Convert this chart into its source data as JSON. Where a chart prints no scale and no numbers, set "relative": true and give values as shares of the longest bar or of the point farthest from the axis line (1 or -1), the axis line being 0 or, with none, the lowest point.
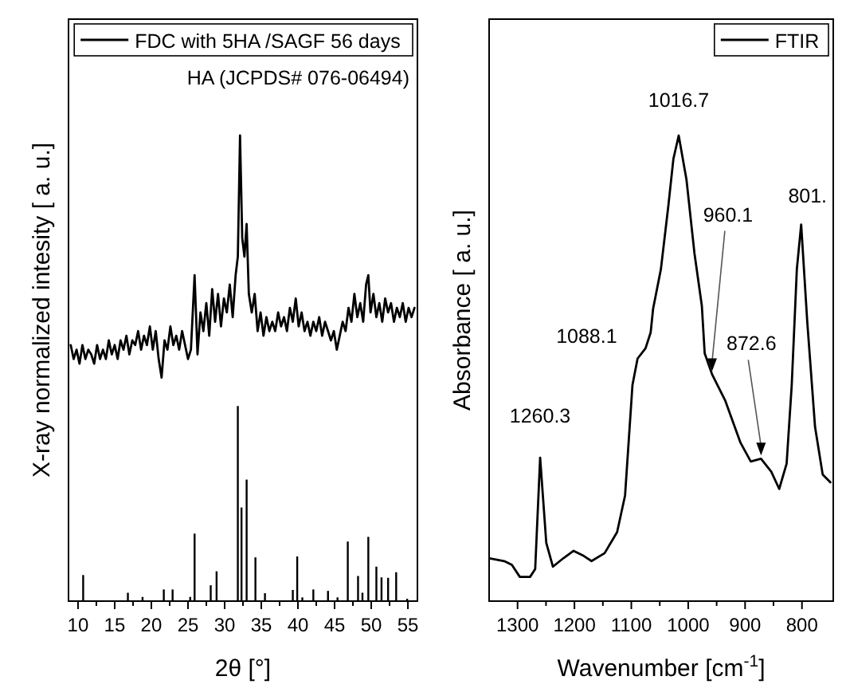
{
  "chart_data": [
    {
      "type": "line",
      "xlabel": "2θ [°]",
      "ylabel": "X-ray normalized intesity [ a. u.]",
      "relative": true,
      "legend": "top right",
      "xlim": [
        8.7,
        56.3
      ],
      "annotations": [
        "HA (JCPDS# 076-06494)"
      ],
      "xticks": [
        10,
        15,
        20,
        25,
        30,
        35,
        40,
        45,
        50,
        55
      ],
      "series": [
        {
          "name": "FDC with 5HA /SAGF 56 days",
          "color": "#000000",
          "x": [
            9,
            9.4,
            9.8,
            10.2,
            10.6,
            11,
            11.4,
            11.8,
            12.2,
            12.6,
            13,
            13.4,
            13.8,
            14.2,
            14.6,
            15,
            15.4,
            15.8,
            16.2,
            16.6,
            17,
            17.4,
            17.8,
            18.2,
            18.6,
            19,
            19.4,
            19.8,
            20.2,
            20.6,
            21,
            21.4,
            21.8,
            22.2,
            22.6,
            23,
            23.4,
            23.8,
            24.2,
            24.6,
            25,
            25.4,
            25.9,
            26.3,
            26.7,
            27.1,
            27.5,
            27.9,
            28.3,
            28.7,
            29.1,
            29.5,
            29.9,
            30.3,
            30.7,
            31.1,
            31.5,
            31.8,
            32.1,
            32.4,
            32.7,
            33,
            33.3,
            33.7,
            34.1,
            34.5,
            34.9,
            35.3,
            35.7,
            36.1,
            36.5,
            36.9,
            37.3,
            37.7,
            38.1,
            38.5,
            38.9,
            39.3,
            39.7,
            40.1,
            40.5,
            40.9,
            41.3,
            41.7,
            42.1,
            42.5,
            42.9,
            43.3,
            43.7,
            44.1,
            44.5,
            44.9,
            45.3,
            45.7,
            46.1,
            46.5,
            46.9,
            47.3,
            47.7,
            48.1,
            48.5,
            48.9,
            49.3,
            49.6,
            49.9,
            50.3,
            50.7,
            51.1,
            51.5,
            51.9,
            52.3,
            52.7,
            53.1,
            53.5,
            53.9,
            54.3,
            54.7,
            55.1,
            55.5,
            55.9
          ],
          "values": [
            0.55,
            0.52,
            0.54,
            0.51,
            0.55,
            0.52,
            0.54,
            0.53,
            0.51,
            0.55,
            0.52,
            0.54,
            0.52,
            0.56,
            0.53,
            0.55,
            0.52,
            0.56,
            0.54,
            0.57,
            0.53,
            0.56,
            0.55,
            0.58,
            0.54,
            0.57,
            0.55,
            0.59,
            0.54,
            0.58,
            0.52,
            0.48,
            0.56,
            0.54,
            0.59,
            0.55,
            0.57,
            0.54,
            0.58,
            0.55,
            0.52,
            0.54,
            0.7,
            0.53,
            0.62,
            0.58,
            0.64,
            0.57,
            0.67,
            0.6,
            0.66,
            0.59,
            0.65,
            0.62,
            0.68,
            0.61,
            0.7,
            0.74,
            1.0,
            0.78,
            0.74,
            0.81,
            0.66,
            0.62,
            0.66,
            0.58,
            0.62,
            0.57,
            0.61,
            0.58,
            0.6,
            0.58,
            0.62,
            0.59,
            0.61,
            0.58,
            0.63,
            0.6,
            0.65,
            0.59,
            0.62,
            0.58,
            0.6,
            0.57,
            0.6,
            0.58,
            0.61,
            0.57,
            0.6,
            0.58,
            0.56,
            0.58,
            0.54,
            0.57,
            0.6,
            0.58,
            0.63,
            0.6,
            0.66,
            0.61,
            0.64,
            0.6,
            0.68,
            0.7,
            0.62,
            0.66,
            0.61,
            0.64,
            0.6,
            0.65,
            0.62,
            0.64,
            0.6,
            0.63,
            0.61,
            0.64,
            0.6,
            0.63,
            0.61,
            0.63
          ]
        },
        {
          "type": "bar",
          "color": "#000000",
          "x": [
            10.7,
            16.8,
            18.8,
            21.7,
            22.9,
            25.3,
            25.9,
            28.1,
            28.9,
            31.8,
            32.3,
            33.0,
            34.2,
            35.5,
            39.3,
            39.9,
            40.6,
            42.1,
            44.1,
            45.4,
            46.8,
            48.2,
            48.8,
            49.6,
            50.7,
            51.4,
            52.3,
            53.4,
            54.9
          ],
          "values": [
            0.056,
            0.018,
            0.009,
            0.025,
            0.025,
            0.009,
            0.145,
            0.034,
            0.064,
            0.419,
            0.201,
            0.261,
            0.094,
            0.017,
            0.024,
            0.096,
            0.008,
            0.025,
            0.022,
            0.008,
            0.128,
            0.054,
            0.018,
            0.138,
            0.074,
            0.051,
            0.05,
            0.062,
            0.005
          ]
        }
      ]
    },
    {
      "type": "line",
      "xlabel": "Wavenumber [cm$^{-1}$]",
      "ylabel": "Absorbance [ a. u.]",
      "relative": true,
      "legend": "top right",
      "xlim": [
        1350,
        745
      ],
      "xticks": [
        1300,
        1200,
        1100,
        1000,
        900,
        800
      ],
      "annotations": [
        {
          "text": "1260.3",
          "x": 1260.3,
          "y": 0.308
        },
        {
          "text": "1088.1",
          "x": 1089,
          "y": 0.521
        },
        {
          "text": "1016.7",
          "x": 1016.7,
          "y": 1.0
        },
        {
          "text": "960.1",
          "x": 958,
          "y": 0.487
        },
        {
          "text": "872.6",
          "x": 872,
          "y": 0.306
        },
        {
          "text": "801.",
          "x": 801.4,
          "y": 0.809
        }
      ],
      "series": [
        {
          "name": "FTIR",
          "color": "#000000",
          "x": [
            1349,
            1323.5,
            1310,
            1296,
            1278,
            1269,
            1260.3,
            1249.5,
            1237.8,
            1219.6,
            1201.5,
            1183.6,
            1170,
            1147,
            1125,
            1111,
            1098,
            1089,
            1075,
            1066,
            1061.7,
            1048,
            1035,
            1026,
            1016.7,
            1003,
            989,
            976,
            971,
            958,
            935,
            908,
            890,
            872,
            854,
            840,
            827,
            818,
            809,
            801.4,
            790.7,
            777,
            763.6,
            750
          ],
          "values": [
            0.092,
            0.086,
            0.078,
            0.052,
            0.052,
            0.069,
            0.308,
            0.125,
            0.074,
            0.092,
            0.108,
            0.097,
            0.086,
            0.103,
            0.148,
            0.227,
            0.464,
            0.521,
            0.543,
            0.577,
            0.628,
            0.713,
            0.848,
            0.95,
            1.0,
            0.905,
            0.747,
            0.634,
            0.532,
            0.487,
            0.431,
            0.34,
            0.3,
            0.306,
            0.278,
            0.241,
            0.295,
            0.464,
            0.713,
            0.809,
            0.6,
            0.374,
            0.272,
            0.255
          ]
        }
      ]
    }
  ]
}
